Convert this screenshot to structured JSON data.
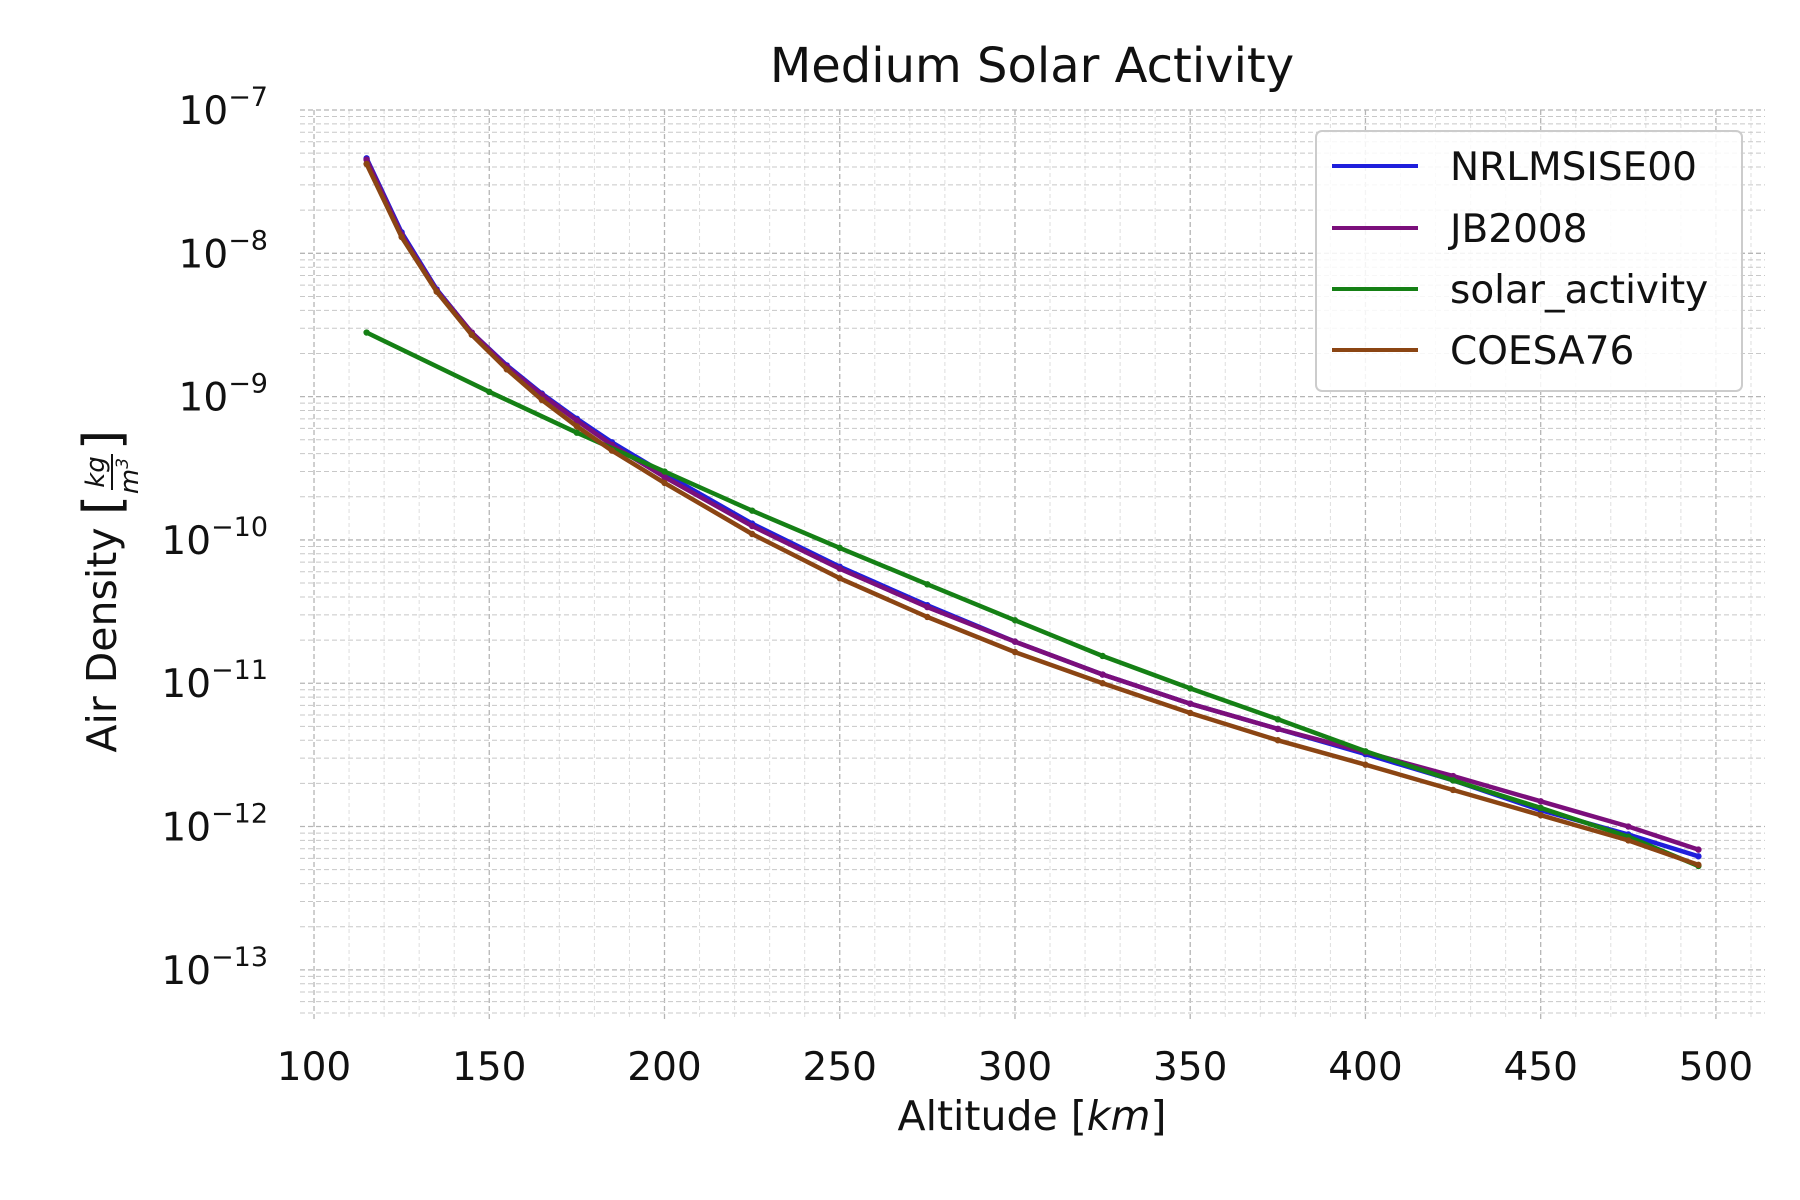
{
  "chart_data": {
    "type": "line",
    "title": "Medium Solar Activity",
    "xlabel": "Altitude [",
    "xlabel_unit": "km",
    "xlabel_close": "]",
    "ylabel": "Air Density",
    "ylabel_unit_num": "kg",
    "ylabel_unit_den": "m",
    "ylabel_unit_exp": "3",
    "xlim": [
      96,
      514
    ],
    "ylim_exp": [
      -13.35,
      -7.0
    ],
    "y_scale": "log",
    "grid": true,
    "legend_position": "top-right",
    "x_ticks": [
      {
        "value": 100,
        "label": "100"
      },
      {
        "value": 150,
        "label": "150"
      },
      {
        "value": 200,
        "label": "200"
      },
      {
        "value": 250,
        "label": "250"
      },
      {
        "value": 300,
        "label": "300"
      },
      {
        "value": 350,
        "label": "350"
      },
      {
        "value": 400,
        "label": "400"
      },
      {
        "value": 450,
        "label": "450"
      },
      {
        "value": 500,
        "label": "500"
      }
    ],
    "y_ticks": [
      {
        "value": 1e-07,
        "base": "10",
        "exp": "−7"
      },
      {
        "value": 1e-08,
        "base": "10",
        "exp": "−8"
      },
      {
        "value": 1e-09,
        "base": "10",
        "exp": "−9"
      },
      {
        "value": 1e-10,
        "base": "10",
        "exp": "−10"
      },
      {
        "value": 1e-11,
        "base": "10",
        "exp": "−11"
      },
      {
        "value": 1e-12,
        "base": "10",
        "exp": "−12"
      },
      {
        "value": 1e-13,
        "base": "10",
        "exp": "−13"
      }
    ],
    "series": [
      {
        "name": "NRLMSISE00",
        "color": "#1f1fdc",
        "points": [
          [
            115,
            4.6e-08
          ],
          [
            125,
            1.4e-08
          ],
          [
            135,
            5.6e-09
          ],
          [
            145,
            2.8e-09
          ],
          [
            155,
            1.65e-09
          ],
          [
            165,
            1.05e-09
          ],
          [
            175,
            7e-10
          ],
          [
            185,
            4.8e-10
          ],
          [
            200,
            2.9e-10
          ],
          [
            225,
            1.3e-10
          ],
          [
            250,
            6.5e-11
          ],
          [
            275,
            3.5e-11
          ],
          [
            300,
            1.95e-11
          ],
          [
            325,
            1.15e-11
          ],
          [
            350,
            7.2e-12
          ],
          [
            375,
            4.8e-12
          ],
          [
            400,
            3.2e-12
          ],
          [
            425,
            2.1e-12
          ],
          [
            450,
            1.3e-12
          ],
          [
            475,
            8.8e-13
          ],
          [
            495,
            6.2e-13
          ]
        ]
      },
      {
        "name": "JB2008",
        "color": "#7b0f7b",
        "points": [
          [
            115,
            4.5e-08
          ],
          [
            125,
            1.35e-08
          ],
          [
            135,
            5.5e-09
          ],
          [
            145,
            2.8e-09
          ],
          [
            155,
            1.62e-09
          ],
          [
            165,
            1.03e-09
          ],
          [
            175,
            6.8e-10
          ],
          [
            185,
            4.6e-10
          ],
          [
            200,
            2.75e-10
          ],
          [
            225,
            1.25e-10
          ],
          [
            250,
            6.3e-11
          ],
          [
            275,
            3.4e-11
          ],
          [
            300,
            1.95e-11
          ],
          [
            325,
            1.15e-11
          ],
          [
            350,
            7.2e-12
          ],
          [
            375,
            4.8e-12
          ],
          [
            400,
            3.3e-12
          ],
          [
            425,
            2.25e-12
          ],
          [
            450,
            1.5e-12
          ],
          [
            475,
            1e-12
          ],
          [
            495,
            6.9e-13
          ]
        ]
      },
      {
        "name": "solar_activity",
        "color": "#158015",
        "points": [
          [
            115,
            2.8e-09
          ],
          [
            150,
            1.08e-09
          ],
          [
            175,
            5.6e-10
          ],
          [
            200,
            3e-10
          ],
          [
            225,
            1.6e-10
          ],
          [
            250,
            8.8e-11
          ],
          [
            275,
            4.9e-11
          ],
          [
            300,
            2.75e-11
          ],
          [
            325,
            1.55e-11
          ],
          [
            350,
            9.2e-12
          ],
          [
            375,
            5.6e-12
          ],
          [
            400,
            3.35e-12
          ],
          [
            425,
            2.1e-12
          ],
          [
            450,
            1.35e-12
          ],
          [
            475,
            8.5e-13
          ],
          [
            495,
            5.3e-13
          ]
        ]
      },
      {
        "name": "COESA76",
        "color": "#8b4513",
        "points": [
          [
            115,
            4.2e-08
          ],
          [
            125,
            1.3e-08
          ],
          [
            135,
            5.4e-09
          ],
          [
            145,
            2.7e-09
          ],
          [
            155,
            1.55e-09
          ],
          [
            165,
            9.5e-10
          ],
          [
            175,
            6.2e-10
          ],
          [
            185,
            4.2e-10
          ],
          [
            200,
            2.5e-10
          ],
          [
            225,
            1.1e-10
          ],
          [
            250,
            5.4e-11
          ],
          [
            275,
            2.9e-11
          ],
          [
            300,
            1.65e-11
          ],
          [
            325,
            1e-11
          ],
          [
            350,
            6.2e-12
          ],
          [
            375,
            4e-12
          ],
          [
            400,
            2.7e-12
          ],
          [
            425,
            1.8e-12
          ],
          [
            450,
            1.2e-12
          ],
          [
            475,
            8e-13
          ],
          [
            495,
            5.4e-13
          ]
        ]
      }
    ]
  }
}
